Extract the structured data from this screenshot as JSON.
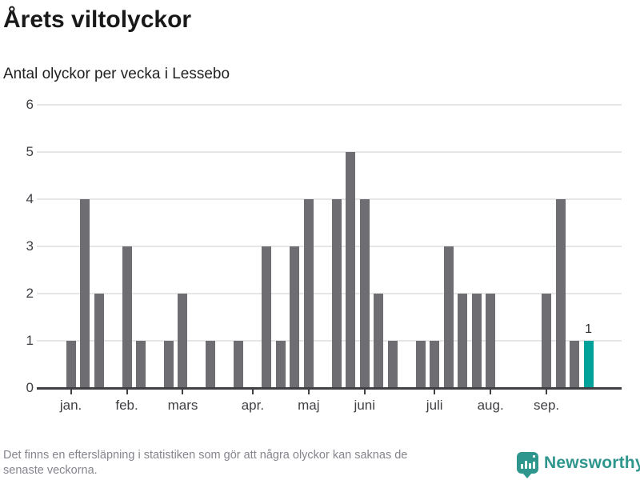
{
  "header": {
    "title": "Årets viltolyckor",
    "subtitle": "Antal olyckor per vecka i Lessebo"
  },
  "chart_data": {
    "type": "bar",
    "xlabel": "",
    "ylabel": "",
    "x_weeks": [
      1,
      2,
      3,
      4,
      5,
      6,
      7,
      8,
      9,
      10,
      11,
      12,
      13,
      14,
      15,
      16,
      17,
      18,
      19,
      20,
      21,
      22,
      23,
      24,
      25,
      26,
      27,
      28,
      29,
      30,
      31,
      32,
      33,
      34,
      35,
      36,
      37,
      38
    ],
    "values": [
      1,
      4,
      2,
      0,
      3,
      1,
      0,
      1,
      2,
      0,
      1,
      0,
      1,
      0,
      3,
      1,
      3,
      4,
      0,
      4,
      5,
      4,
      2,
      1,
      0,
      1,
      1,
      3,
      2,
      2,
      2,
      0,
      0,
      0,
      2,
      4,
      1,
      1
    ],
    "highlight_index": 37,
    "highlight_label": "1",
    "bar_color": "#6d6d72",
    "highlight_color": "#00a29a",
    "grid": true,
    "legend": "none",
    "ylim": [
      0,
      6
    ],
    "yticks": [
      0,
      1,
      2,
      3,
      4,
      5,
      6
    ],
    "month_ticks": [
      {
        "label": "jan.",
        "week_index": 0
      },
      {
        "label": "feb.",
        "week_index": 4
      },
      {
        "label": "mars",
        "week_index": 8
      },
      {
        "label": "apr.",
        "week_index": 13
      },
      {
        "label": "maj",
        "week_index": 17
      },
      {
        "label": "juni",
        "week_index": 21
      },
      {
        "label": "juli",
        "week_index": 26
      },
      {
        "label": "aug.",
        "week_index": 30
      },
      {
        "label": "sep.",
        "week_index": 34
      }
    ]
  },
  "footer": {
    "note_line1": "Det finns en eftersläpning i statistiken som gör att några olyckor kan saknas de",
    "note_line2": "senaste veckorna.",
    "logo_text": "Newsworthy"
  }
}
